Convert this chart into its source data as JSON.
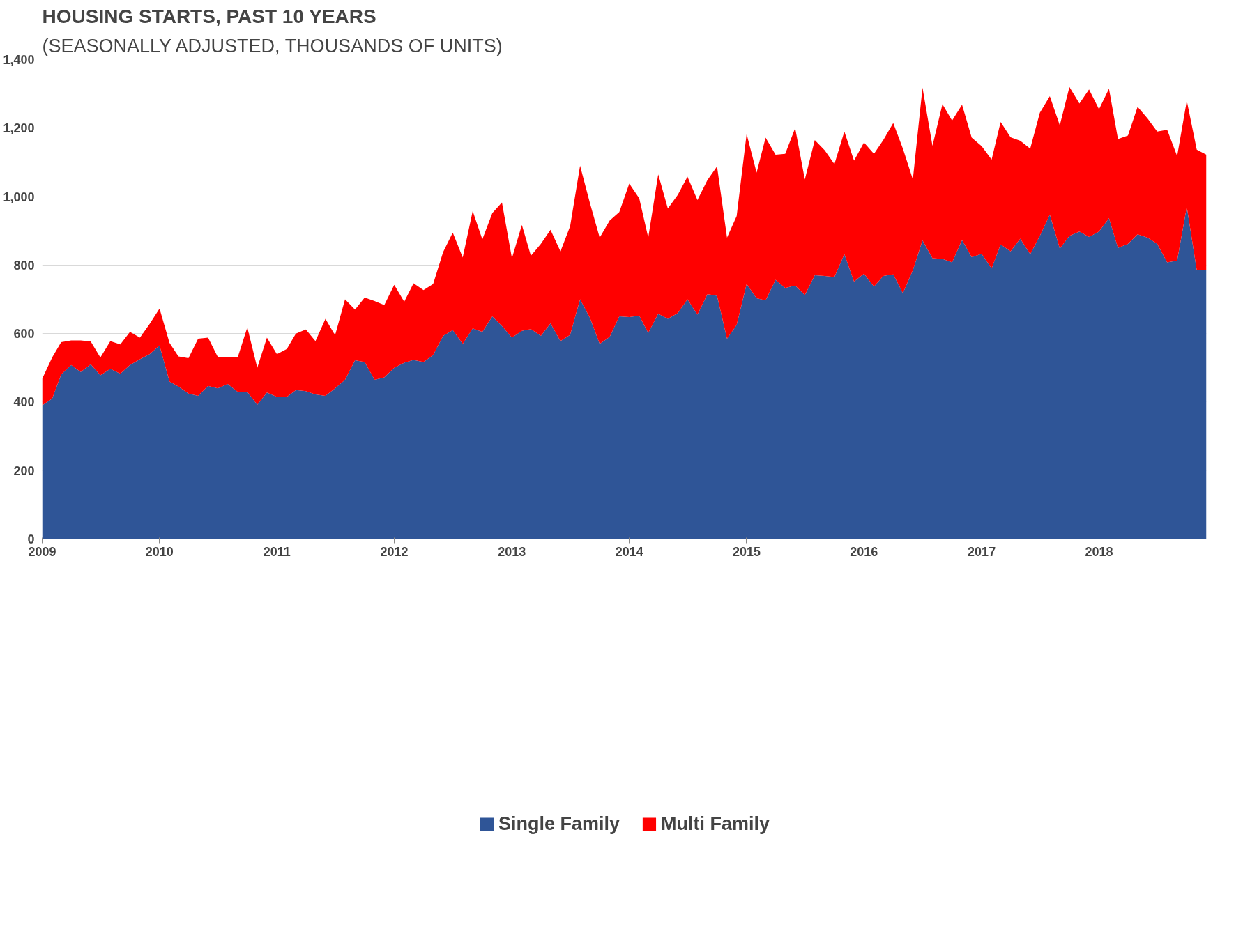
{
  "chart_data": {
    "type": "area",
    "title": "HOUSING STARTS, PAST 10 YEARS",
    "subtitle": "(SEASONALLY ADJUSTED, THOUSANDS OF UNITS)",
    "stacked": true,
    "grid": "y",
    "legend": "bottom",
    "x": [
      "2009-01",
      "2009-02",
      "2009-03",
      "2009-04",
      "2009-05",
      "2009-06",
      "2009-07",
      "2009-08",
      "2009-09",
      "2009-10",
      "2009-11",
      "2009-12",
      "2010-01",
      "2010-02",
      "2010-03",
      "2010-04",
      "2010-05",
      "2010-06",
      "2010-07",
      "2010-08",
      "2010-09",
      "2010-10",
      "2010-11",
      "2010-12",
      "2011-01",
      "2011-02",
      "2011-03",
      "2011-04",
      "2011-05",
      "2011-06",
      "2011-07",
      "2011-08",
      "2011-09",
      "2011-10",
      "2011-11",
      "2011-12",
      "2012-01",
      "2012-02",
      "2012-03",
      "2012-04",
      "2012-05",
      "2012-06",
      "2012-07",
      "2012-08",
      "2012-09",
      "2012-10",
      "2012-11",
      "2012-12",
      "2013-01",
      "2013-02",
      "2013-03",
      "2013-04",
      "2013-05",
      "2013-06",
      "2013-07",
      "2013-08",
      "2013-09",
      "2013-10",
      "2013-11",
      "2013-12",
      "2014-01",
      "2014-02",
      "2014-03",
      "2014-04",
      "2014-05",
      "2014-06",
      "2014-07",
      "2014-08",
      "2014-09",
      "2014-10",
      "2014-11",
      "2014-12",
      "2015-01",
      "2015-02",
      "2015-03",
      "2015-04",
      "2015-05",
      "2015-06",
      "2015-07",
      "2015-08",
      "2015-09",
      "2015-10",
      "2015-11",
      "2015-12",
      "2016-01",
      "2016-02",
      "2016-03",
      "2016-04",
      "2016-05",
      "2016-06",
      "2016-07",
      "2016-08",
      "2016-09",
      "2016-10",
      "2016-11",
      "2016-12",
      "2017-01",
      "2017-02",
      "2017-03",
      "2017-04",
      "2017-05",
      "2017-06",
      "2017-07",
      "2017-08",
      "2017-09",
      "2017-10",
      "2017-11",
      "2017-12",
      "2018-01",
      "2018-02",
      "2018-03",
      "2018-04",
      "2018-05",
      "2018-06",
      "2018-07",
      "2018-08",
      "2018-09",
      "2018-10",
      "2018-11",
      "2018-12"
    ],
    "xlim": [
      "2009-01",
      "2018-12"
    ],
    "xticks": [
      {
        "value": "2009-01",
        "label": "2009"
      },
      {
        "value": "2010-01",
        "label": "2010"
      },
      {
        "value": "2011-01",
        "label": "2011"
      },
      {
        "value": "2012-01",
        "label": "2012"
      },
      {
        "value": "2013-01",
        "label": "2013"
      },
      {
        "value": "2014-01",
        "label": "2014"
      },
      {
        "value": "2015-01",
        "label": "2015"
      },
      {
        "value": "2016-01",
        "label": "2016"
      },
      {
        "value": "2017-01",
        "label": "2017"
      },
      {
        "value": "2018-01",
        "label": "2018"
      }
    ],
    "ylim": [
      0,
      1400
    ],
    "yticks": [
      {
        "value": 0,
        "label": "0"
      },
      {
        "value": 200,
        "label": "200"
      },
      {
        "value": 400,
        "label": "400"
      },
      {
        "value": 600,
        "label": "600"
      },
      {
        "value": 800,
        "label": "800"
      },
      {
        "value": 1000,
        "label": "1,000"
      },
      {
        "value": 1200,
        "label": "1,200"
      },
      {
        "value": 1400,
        "label": "1,400"
      }
    ],
    "series": [
      {
        "name": "Single Family",
        "color": "#2f5597",
        "values": [
          390,
          410,
          480,
          508,
          488,
          510,
          478,
          497,
          483,
          508,
          525,
          540,
          565,
          460,
          445,
          425,
          418,
          447,
          440,
          453,
          430,
          430,
          392,
          428,
          415,
          415,
          435,
          432,
          422,
          418,
          440,
          465,
          522,
          517,
          465,
          472,
          500,
          515,
          523,
          517,
          537,
          593,
          610,
          570,
          615,
          605,
          650,
          622,
          588,
          608,
          613,
          593,
          630,
          578,
          596,
          700,
          645,
          570,
          590,
          650,
          648,
          652,
          602,
          658,
          643,
          660,
          700,
          655,
          715,
          710,
          585,
          625,
          745,
          703,
          697,
          757,
          733,
          740,
          712,
          770,
          768,
          765,
          832,
          752,
          775,
          737,
          768,
          773,
          718,
          785,
          872,
          820,
          818,
          808,
          873,
          823,
          833,
          790,
          860,
          840,
          877,
          832,
          885,
          947,
          848,
          885,
          898,
          882,
          898,
          937,
          850,
          862,
          890,
          880,
          862,
          808,
          813,
          970,
          785,
          785
        ]
      },
      {
        "name": "Multi Family",
        "color": "#ff0000",
        "values": [
          78,
          120,
          95,
          72,
          92,
          67,
          52,
          81,
          85,
          97,
          63,
          88,
          108,
          113,
          88,
          103,
          167,
          141,
          92,
          79,
          100,
          188,
          108,
          160,
          125,
          140,
          165,
          180,
          156,
          225,
          155,
          235,
          148,
          188,
          230,
          211,
          242,
          178,
          224,
          210,
          208,
          245,
          285,
          252,
          343,
          270,
          302,
          361,
          232,
          309,
          214,
          269,
          273,
          262,
          317,
          390,
          335,
          310,
          340,
          305,
          390,
          343,
          278,
          407,
          322,
          345,
          358,
          335,
          333,
          378,
          295,
          318,
          438,
          367,
          475,
          365,
          392,
          460,
          338,
          395,
          367,
          330,
          358,
          353,
          383,
          388,
          397,
          442,
          422,
          265,
          446,
          328,
          452,
          414,
          395,
          349,
          314,
          318,
          358,
          333,
          286,
          308,
          360,
          346,
          360,
          435,
          374,
          431,
          357,
          378,
          318,
          316,
          372,
          348,
          328,
          387,
          305,
          310,
          352,
          337
        ]
      }
    ]
  }
}
